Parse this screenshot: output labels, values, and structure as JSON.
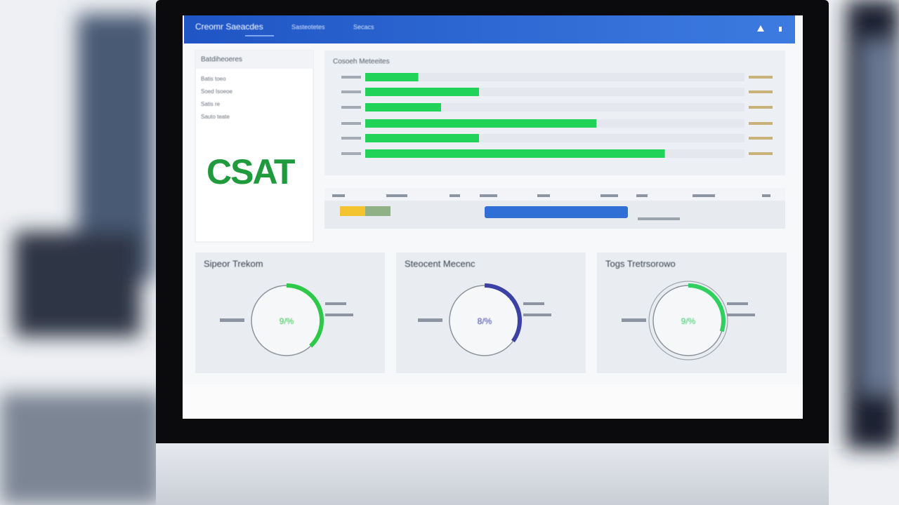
{
  "header": {
    "title": "Creomr Saeacdes",
    "nav": [
      "Sasteotetes",
      "Secacs"
    ]
  },
  "sidebar": {
    "title": "Batdiheoeres",
    "items": [
      "Batis toeo",
      "Soed Isoeoe",
      "Satis re",
      "Sauto teate"
    ],
    "badge": "CSAT"
  },
  "bar_chart": {
    "type": "bar",
    "title": "Cosoeh Meteeites",
    "xlim": [
      0,
      100
    ],
    "values": [
      14,
      30,
      20,
      61,
      30,
      79
    ],
    "color": "#22d35a",
    "track_color": "#e4e8ee"
  },
  "gauges": [
    {
      "title": "Sipeor Trekom",
      "center_label": "9/%",
      "value": 38,
      "color": "#2fc94a"
    },
    {
      "title": "Steocent Mecenc",
      "center_label": "8/%",
      "value": 35,
      "color": "#3b42a4"
    },
    {
      "title": "Togs Tretrsorowo",
      "center_label": "9/%",
      "value": 30,
      "color": "#2fd060"
    }
  ]
}
